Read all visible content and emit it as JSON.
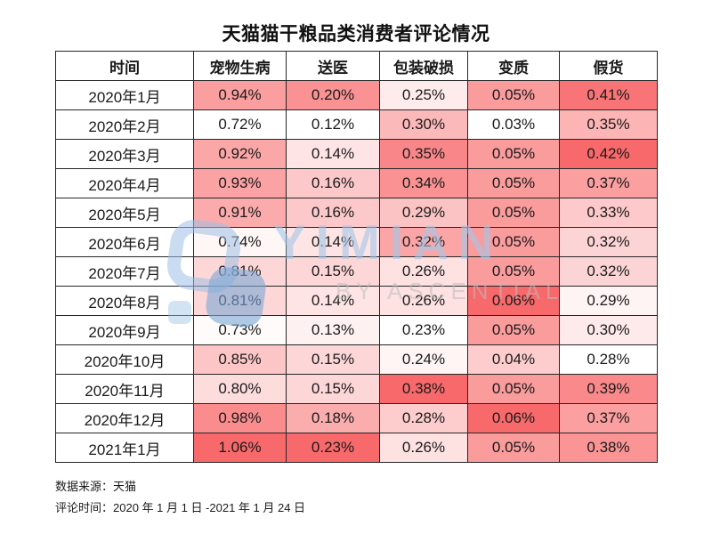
{
  "title": "天猫猫干粮品类消费者评论情况",
  "chart_data": {
    "type": "heatmap",
    "title": "天猫猫干粮品类消费者评论情况",
    "columns": [
      "时间",
      "宠物生病",
      "送医",
      "包装破损",
      "变质",
      "假货"
    ],
    "unit": "%",
    "value_decimals": 2,
    "rows": [
      {
        "label": "2020年1月",
        "values": [
          0.94,
          0.2,
          0.25,
          0.05,
          0.41
        ]
      },
      {
        "label": "2020年2月",
        "values": [
          0.72,
          0.12,
          0.3,
          0.03,
          0.35
        ]
      },
      {
        "label": "2020年3月",
        "values": [
          0.92,
          0.14,
          0.35,
          0.05,
          0.42
        ]
      },
      {
        "label": "2020年4月",
        "values": [
          0.93,
          0.16,
          0.34,
          0.05,
          0.37
        ]
      },
      {
        "label": "2020年5月",
        "values": [
          0.91,
          0.16,
          0.29,
          0.05,
          0.33
        ]
      },
      {
        "label": "2020年6月",
        "values": [
          0.74,
          0.14,
          0.32,
          0.05,
          0.32
        ]
      },
      {
        "label": "2020年7月",
        "values": [
          0.81,
          0.15,
          0.26,
          0.05,
          0.32
        ]
      },
      {
        "label": "2020年8月",
        "values": [
          0.81,
          0.14,
          0.26,
          0.06,
          0.29
        ]
      },
      {
        "label": "2020年9月",
        "values": [
          0.73,
          0.13,
          0.23,
          0.05,
          0.3
        ]
      },
      {
        "label": "2020年10月",
        "values": [
          0.85,
          0.15,
          0.24,
          0.04,
          0.28
        ]
      },
      {
        "label": "2020年11月",
        "values": [
          0.8,
          0.15,
          0.38,
          0.05,
          0.39
        ]
      },
      {
        "label": "2020年12月",
        "values": [
          0.98,
          0.18,
          0.28,
          0.06,
          0.37
        ]
      },
      {
        "label": "2021年1月",
        "values": [
          1.06,
          0.23,
          0.26,
          0.05,
          0.38
        ]
      }
    ],
    "heatmap_scale": {
      "mode": "per-column-linear",
      "min_color": "#FFFFFF",
      "max_color": "#F8696B"
    },
    "layout": {
      "grid": true,
      "border_color": "#262626",
      "header_background": "#FFFFFF"
    }
  },
  "watermark": {
    "text": "YIMIAN",
    "subtext": "BY ASCENTIAL",
    "logo": "yimian-logo",
    "logo_color_light": "#9CC0E6",
    "logo_color_dark": "#7AA6D6",
    "text_color": "#A5C7E9",
    "subtext_color": "#BCBCBC"
  },
  "footer": {
    "source_line": "数据来源：天猫",
    "period_line": "评论时间：2020 年 1 月 1 日 -2021 年 1 月 24 日"
  }
}
